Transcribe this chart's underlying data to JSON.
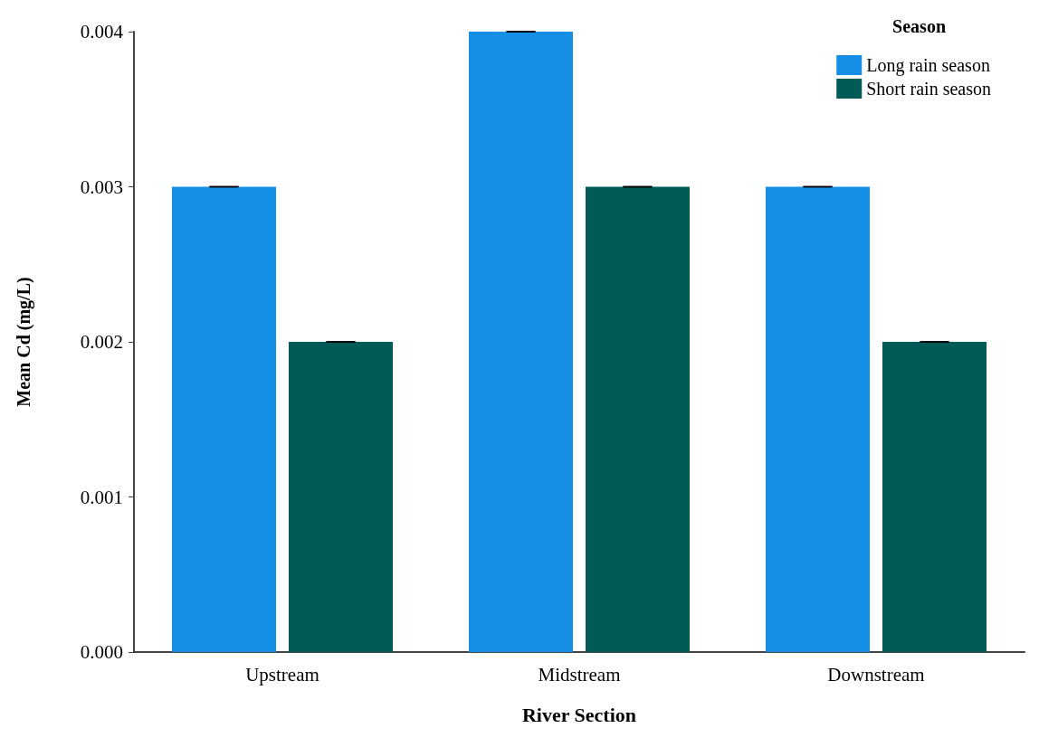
{
  "chart_data": {
    "type": "bar",
    "xlabel": "River Section",
    "ylabel": "Mean Cd (mg/L)",
    "legend_title": "Season",
    "categories": [
      "Upstream",
      "Midstream",
      "Downstream"
    ],
    "series": [
      {
        "name": "Long rain season",
        "color": "#158fe6",
        "values": [
          0.003,
          0.004,
          0.003
        ],
        "errors": [
          0,
          0,
          0
        ]
      },
      {
        "name": "Short rain season",
        "color": "#005a55",
        "values": [
          0.002,
          0.003,
          0.002
        ],
        "errors": [
          0,
          0,
          0
        ]
      }
    ],
    "ylim": [
      0,
      0.004
    ],
    "yticks": [
      {
        "value": 0,
        "label": "0.000"
      },
      {
        "value": 0.001,
        "label": "0.001"
      },
      {
        "value": 0.002,
        "label": "0.002"
      },
      {
        "value": 0.003,
        "label": "0.003"
      },
      {
        "value": 0.004,
        "label": "0.004"
      }
    ],
    "grid": false,
    "legend": "top right"
  }
}
